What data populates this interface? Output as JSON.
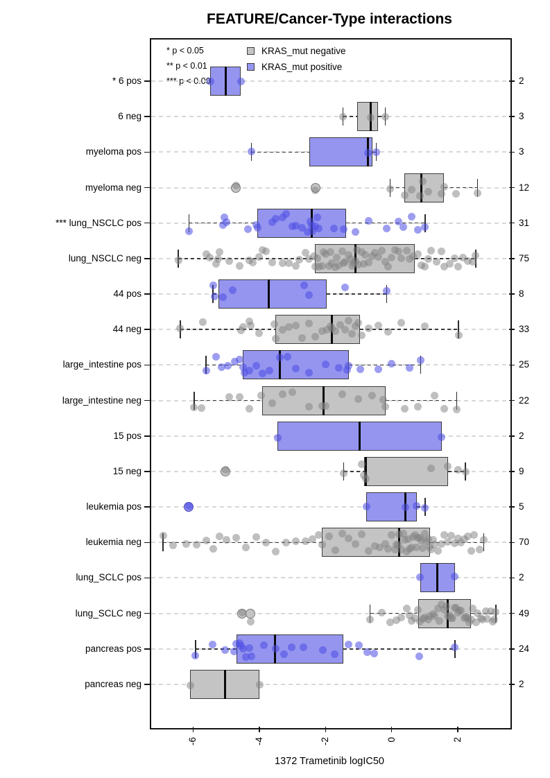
{
  "chart_data": {
    "type": "boxplot",
    "orientation": "horizontal",
    "title": "FEATURE/Cancer-Type interactions",
    "xlabel": "1372 Trametinib logIC50",
    "x_ticks": [
      -6,
      -4,
      -2,
      0,
      2
    ],
    "xlim": [
      -7.31,
      3.55
    ],
    "grid": "dashed light-gray horizontal guide per row",
    "legend": {
      "significance": [
        "* p < 0.05",
        "** p < 0.01",
        "*** p < 0.001"
      ],
      "series": [
        {
          "label": "KRAS_mut negative",
          "color": "#c4c4c4"
        },
        {
          "label": "KRAS_mut positive",
          "color": "#9595f0"
        }
      ]
    },
    "colors": {
      "box_negative": "#c4c4c4",
      "box_positive": "#9595f0",
      "point_negative": "rgba(128,128,128,0.5)",
      "point_positive": "rgba(77,77,228,0.55)",
      "outlier_negative_fill": "rgba(190,190,190,0.9)",
      "outlier_negative_border": "#787878",
      "outlier_positive_fill": "rgba(130,130,235,0.9)",
      "outlier_positive_border": "#4646b4",
      "box_border": "#3d3d3d",
      "median": "#0a0a0a",
      "gridline": "#d8d8d8"
    },
    "groups": [
      {
        "label": "* 6 pos",
        "n": 2,
        "series": "positive",
        "box": {
          "q1": -5.48,
          "median": -5.02,
          "q3": -4.56,
          "whisker_low": -5.48,
          "whisker_high": -4.56
        },
        "outliers": [],
        "points": [
          -5.48,
          -4.56
        ]
      },
      {
        "label": "6 neg",
        "n": 3,
        "series": "negative",
        "box": {
          "q1": -1.05,
          "median": -0.63,
          "q3": -0.41,
          "whisker_low": -1.47,
          "whisker_high": -0.19
        },
        "outliers": [],
        "points": [
          -1.47,
          -0.63,
          -0.19
        ]
      },
      {
        "label": "myeloma pos",
        "n": 3,
        "series": "positive",
        "box": {
          "q1": -2.48,
          "median": -0.71,
          "q3": -0.59,
          "whisker_low": -4.24,
          "whisker_high": -0.46
        },
        "outliers": [],
        "points": [
          -4.24,
          -0.71,
          -0.46
        ]
      },
      {
        "label": "myeloma neg",
        "n": 12,
        "series": "negative",
        "box": {
          "q1": 0.38,
          "median": 0.9,
          "q3": 1.58,
          "whisker_low": -0.05,
          "whisker_high": 2.6
        },
        "outliers": [
          -4.7,
          -2.3
        ],
        "points": [
          -4.7,
          -2.3,
          -0.05,
          0.4,
          0.6,
          0.85,
          0.95,
          1.1,
          1.5,
          1.6,
          1.95,
          2.6
        ]
      },
      {
        "label": "*** lung_NSCLC pos",
        "n": 31,
        "series": "positive",
        "box": {
          "q1": -4.06,
          "median": -2.42,
          "q3": -1.37,
          "whisker_low": -6.13,
          "whisker_high": 1.01
        },
        "outliers": [],
        "points": [
          -6.13,
          -5.1,
          -5.05,
          -5.0,
          -4.35,
          -4.1,
          -4.05,
          -3.6,
          -3.5,
          -3.3,
          -3.2,
          -3.0,
          -2.9,
          -2.7,
          -2.55,
          -2.45,
          -2.42,
          -2.4,
          -2.3,
          -2.25,
          -2.2,
          -1.75,
          -1.45,
          -1.1,
          -0.7,
          -0.15,
          0.2,
          0.35,
          0.6,
          0.8,
          1.01
        ]
      },
      {
        "label": "lung_NSCLC neg",
        "n": 75,
        "series": "negative",
        "box": {
          "q1": -2.31,
          "median": -1.09,
          "q3": 0.69,
          "whisker_low": -6.45,
          "whisker_high": 2.54
        },
        "outliers": [],
        "points": [
          -6.45,
          -5.6,
          -5.5,
          -5.3,
          -5.25,
          -5.2,
          -4.9,
          -4.6,
          -4.3,
          -4.2,
          -4.0,
          -3.9,
          -3.8,
          -3.6,
          -3.3,
          -3.1,
          -2.9,
          -2.8,
          -2.6,
          -2.5,
          -2.35,
          -2.3,
          -2.25,
          -2.2,
          -2.1,
          -2.05,
          -2.0,
          -1.9,
          -1.85,
          -1.8,
          -1.7,
          -1.65,
          -1.6,
          -1.5,
          -1.45,
          -1.4,
          -1.3,
          -1.25,
          -1.2,
          -1.15,
          -1.1,
          -1.05,
          -1.0,
          -0.9,
          -0.85,
          -0.8,
          -0.7,
          -0.6,
          -0.5,
          -0.4,
          -0.3,
          -0.2,
          -0.1,
          0.0,
          0.1,
          0.2,
          0.3,
          0.45,
          0.55,
          0.65,
          0.8,
          0.9,
          1.0,
          1.1,
          1.2,
          1.35,
          1.5,
          1.6,
          1.75,
          1.9,
          2.0,
          2.15,
          2.3,
          2.45,
          2.54
        ]
      },
      {
        "label": "44 pos",
        "n": 8,
        "series": "positive",
        "box": {
          "q1": -5.23,
          "median": -3.72,
          "q3": -1.97,
          "whisker_low": -5.4,
          "whisker_high": -0.15
        },
        "outliers": [],
        "points": [
          -5.4,
          -5.35,
          -5.1,
          -4.8,
          -2.65,
          -2.5,
          -1.4,
          -0.15
        ]
      },
      {
        "label": "44 neg",
        "n": 33,
        "series": "negative",
        "box": {
          "q1": -3.51,
          "median": -1.81,
          "q3": -0.95,
          "whisker_low": -6.39,
          "whisker_high": 2.02
        },
        "outliers": [],
        "points": [
          -6.39,
          -5.7,
          -4.55,
          -4.5,
          -4.3,
          -4.25,
          -4.0,
          -3.55,
          -3.5,
          -3.3,
          -3.1,
          -2.9,
          -2.7,
          -2.5,
          -2.3,
          -2.1,
          -1.95,
          -1.85,
          -1.81,
          -1.7,
          -1.55,
          -1.4,
          -1.3,
          -1.2,
          -1.1,
          -1.0,
          -0.9,
          -0.7,
          -0.4,
          -0.1,
          0.3,
          1.0,
          2.02
        ]
      },
      {
        "label": "large_intestine pos",
        "n": 25,
        "series": "positive",
        "box": {
          "q1": -4.5,
          "median": -3.38,
          "q3": -1.3,
          "whisker_low": -5.61,
          "whisker_high": 0.88
        },
        "outliers": [],
        "points": [
          -5.61,
          -5.3,
          -5.15,
          -4.95,
          -4.75,
          -4.6,
          -4.5,
          -4.45,
          -4.3,
          -4.1,
          -3.9,
          -3.7,
          -3.38,
          -3.15,
          -2.9,
          -2.5,
          -2.0,
          -1.6,
          -1.35,
          -1.3,
          -0.95,
          -0.4,
          0.0,
          0.55,
          0.88
        ]
      },
      {
        "label": "large_intestine neg",
        "n": 22,
        "series": "negative",
        "box": {
          "q1": -3.91,
          "median": -2.06,
          "q3": -0.19,
          "whisker_low": -5.97,
          "whisker_high": 1.97
        },
        "outliers": [],
        "points": [
          -5.97,
          -5.75,
          -4.9,
          -4.6,
          -4.3,
          -3.95,
          -3.6,
          -3.3,
          -3.0,
          -2.5,
          -2.1,
          -2.0,
          -1.5,
          -1.0,
          -0.6,
          -0.25,
          -0.19,
          0.4,
          0.8,
          1.3,
          1.6,
          1.97
        ]
      },
      {
        "label": "15 pos",
        "n": 2,
        "series": "positive",
        "box": {
          "q1": -3.45,
          "median": -0.97,
          "q3": 1.51,
          "whisker_low": -3.45,
          "whisker_high": 1.51
        },
        "outliers": [],
        "points": [
          -3.45,
          1.51
        ]
      },
      {
        "label": "15 neg",
        "n": 9,
        "series": "negative",
        "box": {
          "q1": -0.84,
          "median": -0.78,
          "q3": 1.7,
          "whisker_low": -1.45,
          "whisker_high": 2.23
        },
        "outliers": [
          -5.02
        ],
        "points": [
          -5.02,
          -1.45,
          -0.9,
          -0.84,
          -0.78,
          1.2,
          1.7,
          2.0,
          2.23
        ]
      },
      {
        "label": "leukemia pos",
        "n": 5,
        "series": "positive",
        "box": {
          "q1": -0.76,
          "median": 0.42,
          "q3": 0.76,
          "whisker_low": -0.76,
          "whisker_high": 1.01
        },
        "outliers": [
          -6.13
        ],
        "points": [
          -6.13,
          -0.76,
          0.42,
          0.76,
          1.01
        ]
      },
      {
        "label": "leukemia neg",
        "n": 70,
        "series": "negative",
        "box": {
          "q1": -2.12,
          "median": 0.23,
          "q3": 1.16,
          "whisker_low": -6.91,
          "whisker_high": 2.79
        },
        "outliers": [],
        "points": [
          -6.91,
          -6.6,
          -6.2,
          -5.9,
          -5.6,
          -5.4,
          -5.2,
          -5.0,
          -4.7,
          -4.4,
          -4.1,
          -3.8,
          -3.5,
          -3.2,
          -2.9,
          -2.6,
          -2.4,
          -2.2,
          -2.1,
          -1.9,
          -1.7,
          -1.5,
          -1.3,
          -1.1,
          -0.9,
          -0.7,
          -0.5,
          -0.35,
          -0.2,
          -0.1,
          0.0,
          0.1,
          0.15,
          0.2,
          0.23,
          0.3,
          0.35,
          0.4,
          0.45,
          0.5,
          0.55,
          0.6,
          0.65,
          0.7,
          0.75,
          0.8,
          0.85,
          0.9,
          0.95,
          1.0,
          1.05,
          1.1,
          1.15,
          1.2,
          1.25,
          1.3,
          1.4,
          1.5,
          1.6,
          1.7,
          1.8,
          1.9,
          2.0,
          2.1,
          2.2,
          2.3,
          2.4,
          2.5,
          2.65,
          2.79
        ]
      },
      {
        "label": "lung_SCLC pos",
        "n": 2,
        "series": "positive",
        "box": {
          "q1": 0.86,
          "median": 1.38,
          "q3": 1.91,
          "whisker_low": 0.86,
          "whisker_high": 1.91
        },
        "outliers": [],
        "points": [
          0.86,
          1.91
        ]
      },
      {
        "label": "lung_SCLC neg",
        "n": 49,
        "series": "negative",
        "box": {
          "q1": 0.8,
          "median": 1.7,
          "q3": 2.4,
          "whisker_low": -0.65,
          "whisker_high": 3.15
        },
        "outliers": [
          -4.52,
          -4.27
        ],
        "points": [
          -4.52,
          -4.27,
          -0.65,
          -0.3,
          -0.05,
          0.15,
          0.3,
          0.45,
          0.55,
          0.6,
          0.7,
          0.8,
          0.85,
          0.95,
          1.0,
          1.1,
          1.15,
          1.25,
          1.3,
          1.4,
          1.45,
          1.5,
          1.6,
          1.65,
          1.7,
          1.75,
          1.8,
          1.85,
          1.9,
          1.95,
          2.0,
          2.05,
          2.1,
          2.2,
          2.25,
          2.3,
          2.35,
          2.4,
          2.45,
          2.55,
          2.6,
          2.7,
          2.75,
          2.85,
          2.9,
          3.0,
          3.05,
          3.1,
          3.15
        ]
      },
      {
        "label": "pancreas pos",
        "n": 24,
        "series": "positive",
        "box": {
          "q1": -4.69,
          "median": -3.53,
          "q3": -1.47,
          "whisker_low": -5.93,
          "whisker_high": 1.91
        },
        "outliers": [],
        "points": [
          -5.93,
          -5.42,
          -5.04,
          -4.77,
          -4.69,
          -4.6,
          -4.55,
          -4.5,
          -4.4,
          -4.31,
          -4.24,
          -3.87,
          -3.51,
          -3.26,
          -3.03,
          -2.67,
          -2.08,
          -1.72,
          -1.3,
          -0.99,
          -0.74,
          -0.53,
          0.84,
          1.91
        ]
      },
      {
        "label": "pancreas neg",
        "n": 2,
        "series": "negative",
        "box": {
          "q1": -6.09,
          "median": -5.04,
          "q3": -3.99,
          "whisker_low": -6.09,
          "whisker_high": -3.99
        },
        "outliers": [],
        "points": [
          -6.09,
          -3.99
        ]
      }
    ]
  }
}
